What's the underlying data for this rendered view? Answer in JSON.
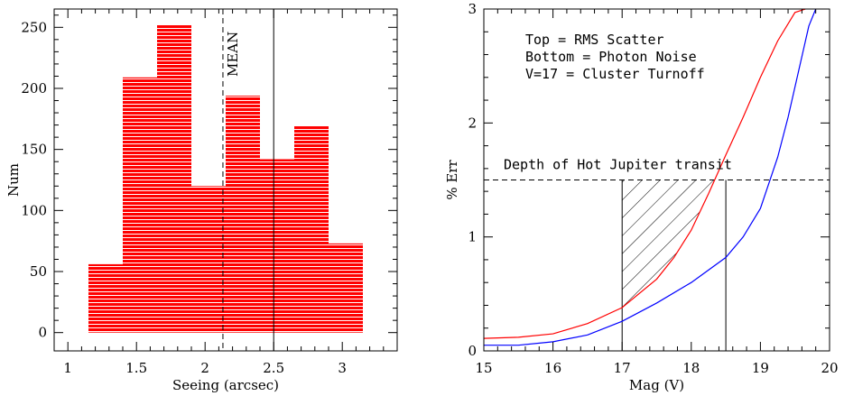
{
  "chart_data": [
    {
      "type": "bar",
      "xlabel": "Seeing (arcsec)",
      "ylabel": "Num",
      "xlim": [
        0.9,
        3.4
      ],
      "ylim": [
        -15,
        265
      ],
      "xticks": [
        "1",
        "1.5",
        "2",
        "2.5",
        "3"
      ],
      "yticks": [
        "0",
        "50",
        "100",
        "150",
        "200",
        "250"
      ],
      "bins": [
        {
          "x0": 1.15,
          "x1": 1.4,
          "value": 56
        },
        {
          "x0": 1.4,
          "x1": 1.65,
          "value": 209
        },
        {
          "x0": 1.65,
          "x1": 1.9,
          "value": 252
        },
        {
          "x0": 1.9,
          "x1": 2.15,
          "value": 120
        },
        {
          "x0": 2.15,
          "x1": 2.4,
          "value": 194
        },
        {
          "x0": 2.4,
          "x1": 2.65,
          "value": 142
        },
        {
          "x0": 2.65,
          "x1": 2.9,
          "value": 169
        },
        {
          "x0": 2.9,
          "x1": 3.15,
          "value": 73
        }
      ],
      "mean_line": {
        "x": 2.13,
        "label": "MEAN",
        "style": "dashed"
      },
      "vline": {
        "x": 2.5,
        "style": "solid"
      },
      "bar_color": "#ff0000",
      "grid": false
    },
    {
      "type": "line",
      "xlabel": "Mag (V)",
      "ylabel": "% Err",
      "xlim": [
        15,
        20
      ],
      "ylim": [
        0,
        3
      ],
      "xticks": [
        "15",
        "16",
        "17",
        "18",
        "19",
        "20"
      ],
      "yticks": [
        "0",
        "1",
        "2",
        "3"
      ],
      "annotations": [
        "Top = RMS Scatter",
        "Bottom = Photon Noise",
        "V=17 = Cluster Turnoff"
      ],
      "series": [
        {
          "color": "#ff0000",
          "x": [
            15.0,
            15.5,
            16.0,
            16.5,
            17.0,
            17.5,
            17.75,
            18.0,
            18.25,
            18.5,
            18.75,
            19.0,
            19.25,
            19.5,
            19.65
          ],
          "y": [
            0.11,
            0.12,
            0.15,
            0.24,
            0.38,
            0.63,
            0.82,
            1.06,
            1.38,
            1.72,
            2.05,
            2.4,
            2.72,
            2.97,
            3.0
          ]
        },
        {
          "color": "#0000ff",
          "x": [
            15.0,
            15.5,
            16.0,
            16.5,
            17.0,
            17.5,
            18.0,
            18.5,
            18.75,
            19.0,
            19.25,
            19.4,
            19.55,
            19.7,
            19.8
          ],
          "y": [
            0.05,
            0.05,
            0.08,
            0.14,
            0.26,
            0.42,
            0.6,
            0.82,
            1.0,
            1.25,
            1.7,
            2.05,
            2.45,
            2.85,
            3.0
          ]
        }
      ],
      "hline": {
        "y": 1.5,
        "label": "Depth of Hot Jupiter transit",
        "style": "dashed"
      },
      "vlines": [
        17.0,
        18.5
      ],
      "hatched_region": {
        "x": [
          17.0,
          18.5
        ],
        "y_top": 1.5,
        "bounded_below_by": "red series"
      },
      "grid": false
    }
  ]
}
